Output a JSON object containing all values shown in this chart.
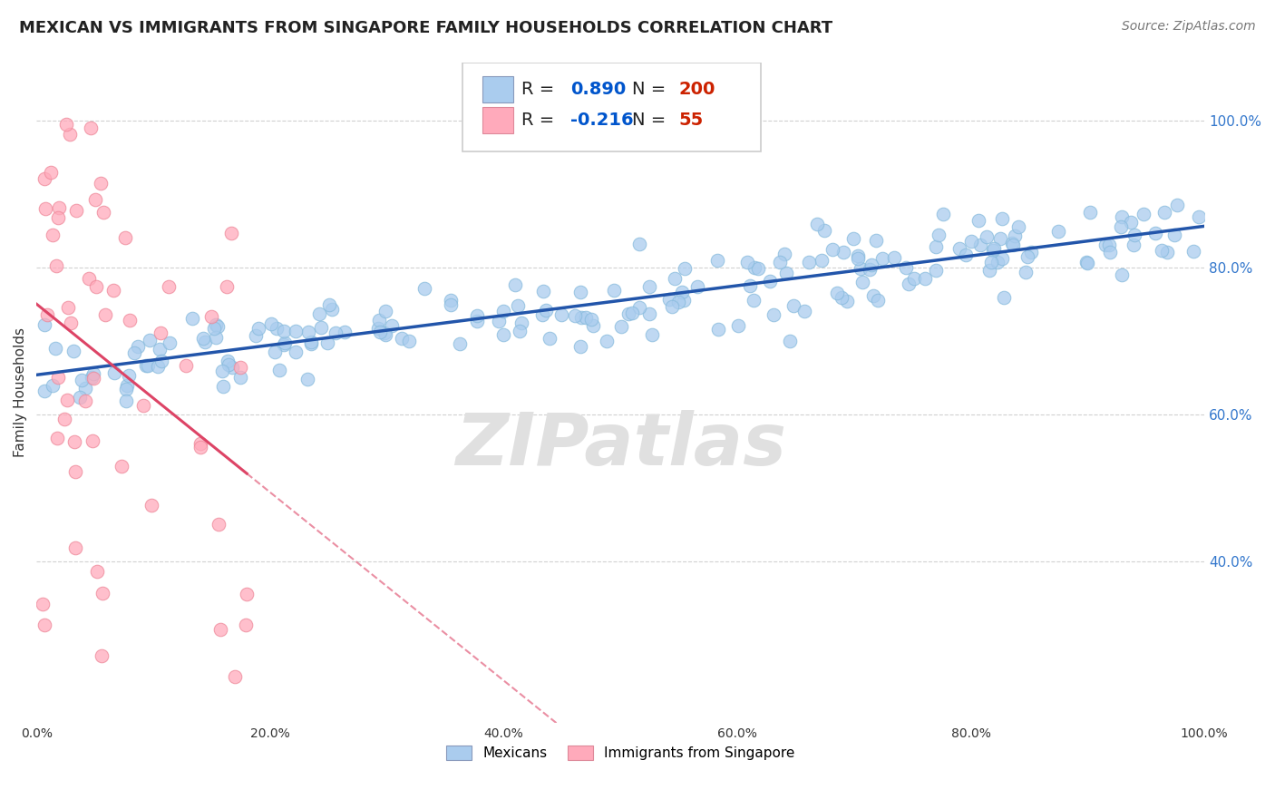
{
  "title": "MEXICAN VS IMMIGRANTS FROM SINGAPORE FAMILY HOUSEHOLDS CORRELATION CHART",
  "source": "Source: ZipAtlas.com",
  "ylabel": "Family Households",
  "xlabel": "",
  "xlim": [
    0.0,
    1.0
  ],
  "ylim": [
    0.18,
    1.08
  ],
  "xtick_labels": [
    "0.0%",
    "20.0%",
    "40.0%",
    "60.0%",
    "80.0%",
    "100.0%"
  ],
  "ytick_labels": [
    "40.0%",
    "60.0%",
    "80.0%",
    "100.0%"
  ],
  "ytick_positions": [
    0.4,
    0.6,
    0.8,
    1.0
  ],
  "grid_color": "#cccccc",
  "background_color": "#ffffff",
  "blue_color": "#aaccee",
  "blue_line_color": "#2255aa",
  "pink_color": "#ffaabb",
  "pink_line_color": "#dd4466",
  "R_blue": 0.89,
  "N_blue": 200,
  "R_pink": -0.216,
  "N_pink": 55,
  "legend_R_color": "#0055cc",
  "legend_N_color": "#cc2200",
  "watermark": "ZIPatlas",
  "watermark_color": "#e0e0e0",
  "title_fontsize": 13,
  "source_fontsize": 10,
  "legend_fontsize": 14,
  "ytick_color": "#3377cc"
}
